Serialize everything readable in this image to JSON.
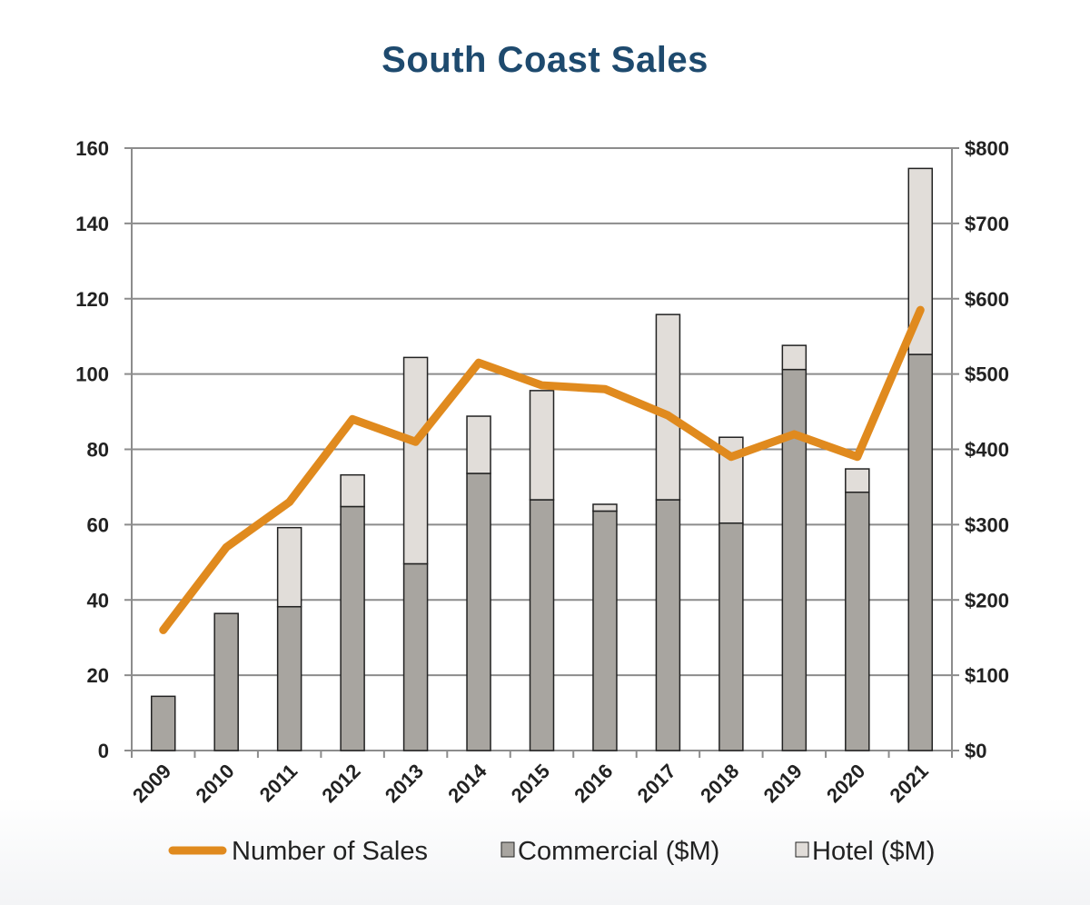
{
  "title": "South Coast Sales",
  "colors": {
    "title": "#1e4a6e",
    "line": "#e08a1e",
    "commercial": "#a8a5a0",
    "hotel": "#e1ddd9",
    "grid": "#8c8c8c",
    "bar_border": "#222222"
  },
  "chart_data": {
    "type": "bar",
    "title": "South Coast Sales",
    "categories": [
      "2009",
      "2010",
      "2011",
      "2012",
      "2013",
      "2014",
      "2015",
      "2016",
      "2017",
      "2018",
      "2019",
      "2020",
      "2021"
    ],
    "y_left": {
      "ylim": [
        0,
        160
      ],
      "ticks": [
        "0",
        "20",
        "40",
        "60",
        "80",
        "100",
        "120",
        "140",
        "160"
      ]
    },
    "y_right": {
      "ylim": [
        0,
        800
      ],
      "ticks": [
        "$0",
        "$100",
        "$200",
        "$300",
        "$400",
        "$500",
        "$600",
        "$700",
        "$800"
      ]
    },
    "series": [
      {
        "name": "Commercial ($M)",
        "kind": "stacked-bar",
        "axis": "right",
        "values": [
          72,
          182,
          191,
          324,
          248,
          368,
          333,
          318,
          333,
          302,
          506,
          343,
          526
        ]
      },
      {
        "name": "Hotel ($M)",
        "kind": "stacked-bar",
        "axis": "right",
        "values": [
          0,
          0,
          105,
          42,
          274,
          76,
          145,
          9,
          246,
          114,
          32,
          31,
          247
        ]
      },
      {
        "name": "Number of Sales",
        "kind": "line",
        "axis": "left",
        "values": [
          32,
          54,
          66,
          88,
          82,
          103,
          97,
          96,
          89,
          78,
          84,
          78,
          117
        ]
      }
    ],
    "grid": true,
    "legend_position": "bottom"
  },
  "legend": [
    {
      "label": "Number of Sales",
      "symbol": "line"
    },
    {
      "label": "Commercial ($M)",
      "symbol": "commercial"
    },
    {
      "label": "Hotel ($M)",
      "symbol": "hotel"
    }
  ]
}
